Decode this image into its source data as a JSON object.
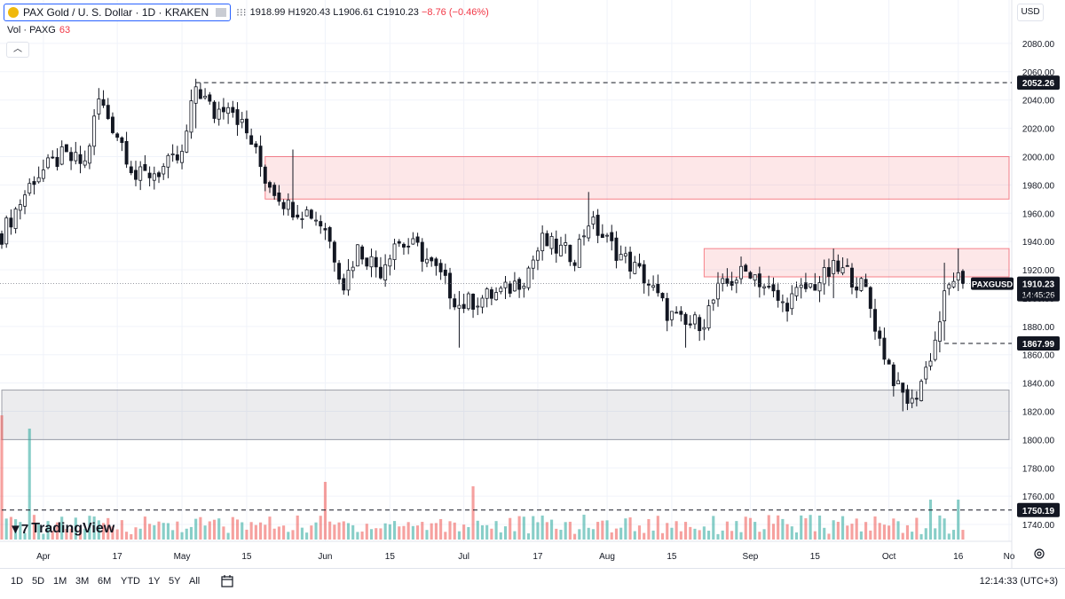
{
  "header": {
    "title": "PAX Gold / U. S. Dollar · 1D · KRAKEN",
    "more": "⁝⁝⁝",
    "ohlc": {
      "h": "H1920.43",
      "l": "L1906.61",
      "c": "C1910.23",
      "chg": "−8.76 (−0.46%)",
      "o_partial": "1918.99"
    },
    "vol_label": "Vol · PAXG",
    "vol_value": "63",
    "collapse": "︿",
    "currency": "USD"
  },
  "footer": {
    "timeframes": [
      "1D",
      "5D",
      "1M",
      "3M",
      "6M",
      "YTD",
      "1Y",
      "5Y",
      "All"
    ],
    "clock": "12:14:33 (UTC+3)"
  },
  "branding": {
    "logo_text": "TradingView",
    "logo_mark": "▼7"
  },
  "colors": {
    "up": "#26a69a",
    "down": "#ef5350",
    "zone_red": "#f23645",
    "zone_gray": "#9598a1",
    "axis_label_bg": "#131722"
  },
  "chart_data": {
    "type": "candlestick",
    "symbol": "PAXGUSD",
    "exchange": "KRAKEN",
    "interval": "1D",
    "ylim": [
      1730,
      2095
    ],
    "x_range": [
      "2023-03-23",
      "2023-10-27"
    ],
    "y_ticks": [
      1740,
      1760,
      1780,
      1800,
      1820,
      1840,
      1860,
      1880,
      1900,
      1920,
      1940,
      1960,
      1980,
      2000,
      2020,
      2040,
      2060,
      2080
    ],
    "x_ticks": [
      {
        "date": "2023-04-01",
        "label": "Apr"
      },
      {
        "date": "2023-04-17",
        "label": "17"
      },
      {
        "date": "2023-05-01",
        "label": "May"
      },
      {
        "date": "2023-05-15",
        "label": "15"
      },
      {
        "date": "2023-06-01",
        "label": "Jun"
      },
      {
        "date": "2023-06-15",
        "label": "15"
      },
      {
        "date": "2023-07-01",
        "label": "Jul"
      },
      {
        "date": "2023-07-17",
        "label": "17"
      },
      {
        "date": "2023-08-01",
        "label": "Aug"
      },
      {
        "date": "2023-08-15",
        "label": "15"
      },
      {
        "date": "2023-09-01",
        "label": "Sep"
      },
      {
        "date": "2023-09-15",
        "label": "15"
      },
      {
        "date": "2023-10-01",
        "label": "Oct"
      },
      {
        "date": "2023-10-16",
        "label": "16"
      },
      {
        "date": "2023-10-27",
        "label": "No"
      }
    ],
    "price_path": [
      [
        "2023-03-23",
        1945
      ],
      [
        "2023-03-30",
        1985
      ],
      [
        "2023-04-05",
        2000
      ],
      [
        "2023-04-10",
        1995
      ],
      [
        "2023-04-13",
        2040
      ],
      [
        "2023-04-18",
        2010
      ],
      [
        "2023-04-21",
        1985
      ],
      [
        "2023-04-26",
        1990
      ],
      [
        "2023-05-01",
        2000
      ],
      [
        "2023-05-04",
        2050
      ],
      [
        "2023-05-08",
        2030
      ],
      [
        "2023-05-11",
        2040
      ],
      [
        "2023-05-16",
        2010
      ],
      [
        "2023-05-19",
        1985
      ],
      [
        "2023-05-24",
        1965
      ],
      [
        "2023-05-29",
        1960
      ],
      [
        "2023-06-01",
        1950
      ],
      [
        "2023-06-05",
        1910
      ],
      [
        "2023-06-08",
        1935
      ],
      [
        "2023-06-13",
        1920
      ],
      [
        "2023-06-16",
        1940
      ],
      [
        "2023-06-21",
        1935
      ],
      [
        "2023-06-26",
        1915
      ],
      [
        "2023-06-30",
        1895
      ],
      [
        "2023-07-05",
        1900
      ],
      [
        "2023-07-10",
        1905
      ],
      [
        "2023-07-14",
        1915
      ],
      [
        "2023-07-18",
        1940
      ],
      [
        "2023-07-21",
        1935
      ],
      [
        "2023-07-25",
        1930
      ],
      [
        "2023-07-28",
        1955
      ],
      [
        "2023-08-01",
        1940
      ],
      [
        "2023-08-04",
        1930
      ],
      [
        "2023-08-09",
        1915
      ],
      [
        "2023-08-14",
        1890
      ],
      [
        "2023-08-18",
        1880
      ],
      [
        "2023-08-22",
        1885
      ],
      [
        "2023-08-25",
        1905
      ],
      [
        "2023-08-29",
        1915
      ],
      [
        "2023-09-01",
        1920
      ],
      [
        "2023-09-05",
        1905
      ],
      [
        "2023-09-08",
        1895
      ],
      [
        "2023-09-12",
        1905
      ],
      [
        "2023-09-15",
        1910
      ],
      [
        "2023-09-19",
        1920
      ],
      [
        "2023-09-22",
        1918
      ],
      [
        "2023-09-26",
        1905
      ],
      [
        "2023-09-29",
        1870
      ],
      [
        "2023-10-03",
        1835
      ],
      [
        "2023-10-06",
        1825
      ],
      [
        "2023-10-09",
        1850
      ],
      [
        "2023-10-11",
        1870
      ],
      [
        "2023-10-13",
        1900
      ],
      [
        "2023-10-15",
        1915
      ],
      [
        "2023-10-17",
        1910
      ]
    ],
    "key_candles": [
      {
        "date": "2023-05-04",
        "h": 2055,
        "l": 2020
      },
      {
        "date": "2023-05-25",
        "h": 2005,
        "l": 1955
      },
      {
        "date": "2023-06-30",
        "h": 1905,
        "l": 1865
      },
      {
        "date": "2023-07-28",
        "h": 1975,
        "l": 1940
      },
      {
        "date": "2023-08-18",
        "h": 1890,
        "l": 1865
      },
      {
        "date": "2023-09-19",
        "h": 1935,
        "l": 1900
      },
      {
        "date": "2023-10-04",
        "h": 1840,
        "l": 1820
      },
      {
        "date": "2023-10-13",
        "h": 1925,
        "l": 1870
      },
      {
        "date": "2023-10-16",
        "h": 1935,
        "l": 1905
      },
      {
        "date": "2023-10-17",
        "o": 1918.99,
        "h": 1920.43,
        "l": 1906.61,
        "c": 1910.23
      }
    ],
    "zones": [
      {
        "name": "resistance-1",
        "from": "2023-05-19",
        "to": "2023-10-27",
        "low": 1970,
        "high": 2000,
        "color": "red"
      },
      {
        "name": "resistance-2",
        "from": "2023-08-22",
        "to": "2023-10-27",
        "low": 1915,
        "high": 1935,
        "color": "red"
      },
      {
        "name": "support",
        "from": "2023-03-23",
        "to": "2023-10-27",
        "low": 1800,
        "high": 1835,
        "color": "gray"
      }
    ],
    "levels": [
      {
        "value": 2052.26,
        "label": "2052.26",
        "from": "2023-05-04"
      },
      {
        "value": 1867.99,
        "label": "1867.99",
        "from": "2023-10-13"
      },
      {
        "value": 1750.19,
        "label": "1750.19",
        "from": "2023-03-23"
      }
    ],
    "last_price": {
      "label": "PAXGUSD",
      "value": "1910.23",
      "countdown": "14:45:26"
    },
    "volume_scale_max": 150,
    "volume_peaks": [
      {
        "date": "2023-03-23",
        "value": 140
      },
      {
        "date": "2023-03-29",
        "value": 125
      },
      {
        "date": "2023-06-01",
        "value": 65
      },
      {
        "date": "2023-07-03",
        "value": 60
      },
      {
        "date": "2023-10-10",
        "value": 45
      },
      {
        "date": "2023-10-16",
        "value": 45
      }
    ]
  }
}
